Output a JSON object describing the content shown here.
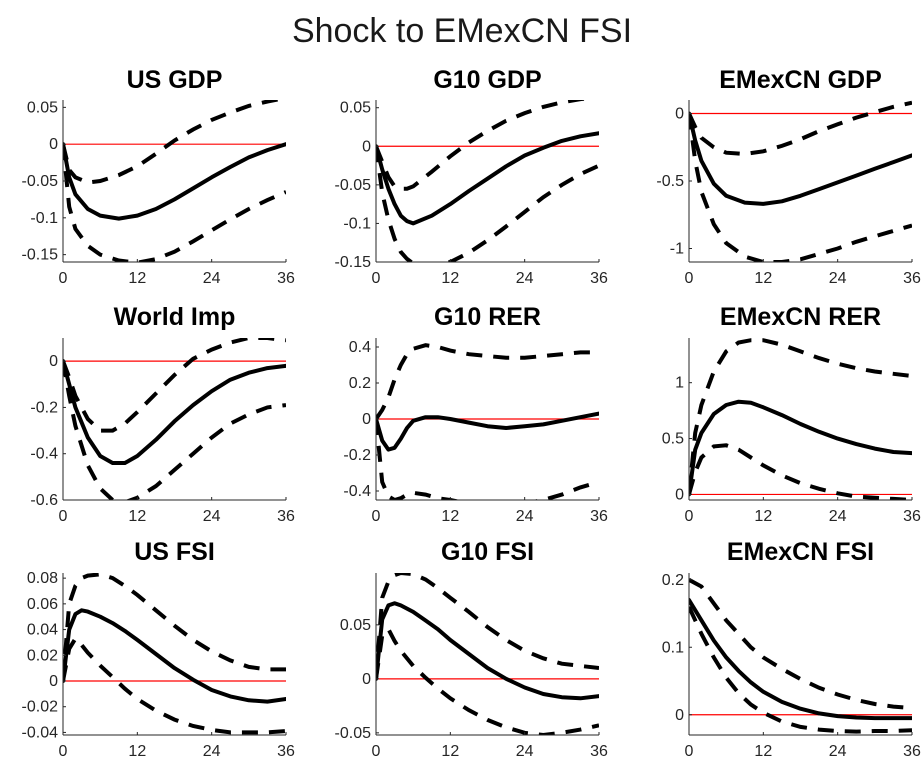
{
  "figure": {
    "title": "Shock to EMexCN FSI"
  },
  "chart_data": [
    {
      "type": "line",
      "title": "US GDP",
      "xlim": [
        0,
        36
      ],
      "ylim": [
        -0.16,
        0.06
      ],
      "xticks": [
        0,
        12,
        24,
        36
      ],
      "yticks": [
        -0.15,
        -0.1,
        -0.05,
        0,
        0.05
      ],
      "ytick_labels": [
        "-0.15",
        "-0.1",
        "-0.05",
        "0",
        "0.05"
      ],
      "x": [
        0,
        1,
        2,
        4,
        6,
        9,
        12,
        15,
        18,
        21,
        24,
        27,
        30,
        33,
        36
      ],
      "irf": [
        0,
        -0.045,
        -0.068,
        -0.088,
        -0.097,
        -0.101,
        -0.097,
        -0.088,
        -0.075,
        -0.06,
        -0.045,
        -0.031,
        -0.018,
        -0.008,
        0
      ],
      "lower": [
        0,
        -0.085,
        -0.115,
        -0.138,
        -0.15,
        -0.158,
        -0.161,
        -0.156,
        -0.146,
        -0.132,
        -0.117,
        -0.102,
        -0.088,
        -0.076,
        -0.065
      ],
      "upper": [
        0,
        -0.035,
        -0.045,
        -0.052,
        -0.05,
        -0.042,
        -0.03,
        -0.013,
        0.005,
        0.02,
        0.033,
        0.043,
        0.052,
        0.058,
        0.063
      ]
    },
    {
      "type": "line",
      "title": "G10 GDP",
      "xlim": [
        0,
        36
      ],
      "ylim": [
        -0.15,
        0.06
      ],
      "xticks": [
        0,
        12,
        24,
        36
      ],
      "yticks": [
        -0.15,
        -0.1,
        -0.05,
        0,
        0.05
      ],
      "ytick_labels": [
        "-0.15",
        "-0.1",
        "-0.05",
        "0",
        "0.05"
      ],
      "x": [
        0,
        1,
        2,
        3,
        4,
        5,
        6,
        9,
        12,
        15,
        18,
        21,
        24,
        27,
        30,
        33,
        36
      ],
      "irf": [
        0,
        -0.03,
        -0.055,
        -0.075,
        -0.09,
        -0.097,
        -0.1,
        -0.09,
        -0.075,
        -0.058,
        -0.042,
        -0.026,
        -0.012,
        -0.002,
        0.007,
        0.013,
        0.017
      ],
      "lower": [
        0,
        -0.06,
        -0.095,
        -0.12,
        -0.137,
        -0.146,
        -0.152,
        -0.155,
        -0.15,
        -0.138,
        -0.122,
        -0.104,
        -0.085,
        -0.066,
        -0.05,
        -0.036,
        -0.025
      ],
      "upper": [
        0,
        -0.02,
        -0.04,
        -0.052,
        -0.055,
        -0.055,
        -0.052,
        -0.033,
        -0.013,
        0.005,
        0.02,
        0.033,
        0.043,
        0.051,
        0.057,
        0.061,
        0.064
      ]
    },
    {
      "type": "line",
      "title": "EMexCN GDP",
      "xlim": [
        0,
        36
      ],
      "ylim": [
        -1.1,
        0.1
      ],
      "xticks": [
        0,
        12,
        24,
        36
      ],
      "yticks": [
        -1,
        -0.5,
        0
      ],
      "ytick_labels": [
        "-1",
        "-0.5",
        "0"
      ],
      "x": [
        0,
        1,
        2,
        4,
        6,
        9,
        12,
        15,
        18,
        21,
        24,
        27,
        30,
        33,
        36
      ],
      "irf": [
        0,
        -0.2,
        -0.35,
        -0.52,
        -0.61,
        -0.66,
        -0.67,
        -0.65,
        -0.61,
        -0.56,
        -0.51,
        -0.46,
        -0.41,
        -0.36,
        -0.31
      ],
      "lower": [
        0,
        -0.35,
        -0.58,
        -0.82,
        -0.96,
        -1.06,
        -1.1,
        -1.1,
        -1.08,
        -1.04,
        -1.0,
        -0.95,
        -0.91,
        -0.87,
        -0.83
      ],
      "upper": [
        0,
        -0.1,
        -0.18,
        -0.25,
        -0.29,
        -0.3,
        -0.28,
        -0.24,
        -0.19,
        -0.13,
        -0.08,
        -0.03,
        0.01,
        0.05,
        0.08
      ]
    },
    {
      "type": "line",
      "title": "World Imp",
      "xlim": [
        0,
        36
      ],
      "ylim": [
        -0.6,
        0.1
      ],
      "xticks": [
        0,
        12,
        24,
        36
      ],
      "yticks": [
        -0.6,
        -0.4,
        -0.2,
        0
      ],
      "ytick_labels": [
        "-0.6",
        "-0.4",
        "-0.2",
        "0"
      ],
      "x": [
        0,
        1,
        2,
        4,
        6,
        8,
        10,
        12,
        15,
        18,
        21,
        24,
        27,
        30,
        33,
        36
      ],
      "irf": [
        0,
        -0.1,
        -0.2,
        -0.33,
        -0.41,
        -0.44,
        -0.44,
        -0.41,
        -0.34,
        -0.26,
        -0.19,
        -0.13,
        -0.08,
        -0.05,
        -0.03,
        -0.02
      ],
      "lower": [
        0,
        -0.15,
        -0.28,
        -0.45,
        -0.55,
        -0.6,
        -0.61,
        -0.59,
        -0.54,
        -0.47,
        -0.4,
        -0.33,
        -0.27,
        -0.23,
        -0.2,
        -0.19
      ],
      "upper": [
        0,
        -0.07,
        -0.15,
        -0.25,
        -0.3,
        -0.3,
        -0.27,
        -0.22,
        -0.14,
        -0.06,
        0.01,
        0.05,
        0.08,
        0.1,
        0.1,
        0.09
      ]
    },
    {
      "type": "line",
      "title": "G10 RER",
      "xlim": [
        0,
        36
      ],
      "ylim": [
        -0.45,
        0.45
      ],
      "xticks": [
        0,
        12,
        24,
        36
      ],
      "yticks": [
        -0.4,
        -0.2,
        0,
        0.2,
        0.4
      ],
      "ytick_labels": [
        "-0.4",
        "-0.2",
        "0",
        "0.2",
        "0.4"
      ],
      "x": [
        0,
        1,
        2,
        3,
        4,
        5,
        6,
        8,
        10,
        12,
        15,
        18,
        21,
        24,
        27,
        30,
        33,
        36
      ],
      "irf": [
        0,
        -0.12,
        -0.17,
        -0.16,
        -0.11,
        -0.05,
        -0.01,
        0.01,
        0.01,
        0.0,
        -0.02,
        -0.04,
        -0.05,
        -0.04,
        -0.03,
        -0.01,
        0.01,
        0.03
      ],
      "lower": [
        0,
        -0.35,
        -0.43,
        -0.45,
        -0.44,
        -0.42,
        -0.41,
        -0.42,
        -0.44,
        -0.45,
        -0.47,
        -0.48,
        -0.48,
        -0.47,
        -0.45,
        -0.42,
        -0.38,
        -0.35
      ],
      "upper": [
        0,
        0.05,
        0.12,
        0.22,
        0.3,
        0.36,
        0.39,
        0.41,
        0.4,
        0.38,
        0.36,
        0.35,
        0.34,
        0.34,
        0.35,
        0.36,
        0.37,
        0.37
      ]
    },
    {
      "type": "line",
      "title": "EMexCN RER",
      "xlim": [
        0,
        36
      ],
      "ylim": [
        -0.05,
        1.4
      ],
      "xticks": [
        0,
        12,
        24,
        36
      ],
      "yticks": [
        0,
        0.5,
        1
      ],
      "ytick_labels": [
        "0",
        "0.5",
        "1"
      ],
      "x": [
        0,
        1,
        2,
        4,
        6,
        8,
        10,
        12,
        15,
        18,
        21,
        24,
        27,
        30,
        33,
        36
      ],
      "irf": [
        0,
        0.4,
        0.55,
        0.72,
        0.8,
        0.83,
        0.82,
        0.78,
        0.71,
        0.63,
        0.56,
        0.5,
        0.45,
        0.41,
        0.38,
        0.37
      ],
      "lower": [
        0,
        0.2,
        0.33,
        0.43,
        0.44,
        0.4,
        0.33,
        0.26,
        0.17,
        0.1,
        0.05,
        0.01,
        -0.02,
        -0.03,
        -0.04,
        -0.05
      ],
      "upper": [
        0,
        0.55,
        0.8,
        1.1,
        1.28,
        1.36,
        1.38,
        1.38,
        1.34,
        1.28,
        1.22,
        1.17,
        1.13,
        1.1,
        1.08,
        1.06
      ]
    },
    {
      "type": "line",
      "title": "US FSI",
      "xlim": [
        0,
        36
      ],
      "ylim": [
        -0.042,
        0.084
      ],
      "xticks": [
        0,
        12,
        24,
        36
      ],
      "yticks": [
        -0.04,
        -0.02,
        0,
        0.02,
        0.04,
        0.06,
        0.08
      ],
      "ytick_labels": [
        "-0.04",
        "-0.02",
        "0",
        "0.02",
        "0.04",
        "0.06",
        "0.08"
      ],
      "x": [
        0,
        1,
        2,
        3,
        4,
        6,
        8,
        10,
        12,
        15,
        18,
        21,
        24,
        27,
        30,
        33,
        36
      ],
      "irf": [
        0,
        0.04,
        0.052,
        0.055,
        0.054,
        0.05,
        0.045,
        0.039,
        0.032,
        0.021,
        0.01,
        0.001,
        -0.007,
        -0.012,
        -0.015,
        -0.016,
        -0.014
      ],
      "lower": [
        0,
        0.025,
        0.033,
        0.028,
        0.022,
        0.012,
        0.003,
        -0.006,
        -0.014,
        -0.023,
        -0.03,
        -0.035,
        -0.038,
        -0.04,
        -0.04,
        -0.04,
        -0.039
      ],
      "upper": [
        0,
        0.06,
        0.074,
        0.08,
        0.082,
        0.083,
        0.08,
        0.074,
        0.067,
        0.055,
        0.043,
        0.032,
        0.023,
        0.016,
        0.011,
        0.009,
        0.009
      ]
    },
    {
      "type": "line",
      "title": "G10 FSI",
      "xlim": [
        0,
        36
      ],
      "ylim": [
        -0.052,
        0.098
      ],
      "xticks": [
        0,
        12,
        24,
        36
      ],
      "yticks": [
        -0.05,
        0,
        0.05
      ],
      "ytick_labels": [
        "-0.05",
        "0",
        "0.05"
      ],
      "x": [
        0,
        1,
        2,
        3,
        4,
        6,
        8,
        10,
        12,
        15,
        18,
        21,
        24,
        27,
        30,
        33,
        36
      ],
      "irf": [
        0,
        0.055,
        0.068,
        0.07,
        0.068,
        0.062,
        0.054,
        0.046,
        0.036,
        0.023,
        0.01,
        0.0,
        -0.008,
        -0.014,
        -0.017,
        -0.018,
        -0.016
      ],
      "lower": [
        0,
        0.04,
        0.046,
        0.035,
        0.026,
        0.012,
        0.001,
        -0.009,
        -0.018,
        -0.029,
        -0.038,
        -0.045,
        -0.05,
        -0.052,
        -0.05,
        -0.047,
        -0.043
      ],
      "upper": [
        0,
        0.075,
        0.09,
        0.096,
        0.098,
        0.097,
        0.092,
        0.084,
        0.075,
        0.062,
        0.048,
        0.036,
        0.026,
        0.019,
        0.014,
        0.012,
        0.01
      ]
    },
    {
      "type": "line",
      "title": "EMexCN FSI",
      "xlim": [
        0,
        36
      ],
      "ylim": [
        -0.03,
        0.21
      ],
      "xticks": [
        0,
        12,
        24,
        36
      ],
      "yticks": [
        0,
        0.1,
        0.2
      ],
      "ytick_labels": [
        "0",
        "0.1",
        "0.2"
      ],
      "x": [
        0,
        2,
        4,
        6,
        8,
        10,
        12,
        15,
        18,
        21,
        24,
        27,
        30,
        33,
        36
      ],
      "irf": [
        0.17,
        0.14,
        0.11,
        0.085,
        0.065,
        0.048,
        0.034,
        0.019,
        0.009,
        0.002,
        -0.002,
        -0.004,
        -0.005,
        -0.005,
        -0.005
      ],
      "lower": [
        0.16,
        0.12,
        0.085,
        0.055,
        0.032,
        0.015,
        0.003,
        -0.01,
        -0.018,
        -0.022,
        -0.024,
        -0.025,
        -0.024,
        -0.024,
        -0.023
      ],
      "upper": [
        0.2,
        0.19,
        0.165,
        0.14,
        0.12,
        0.1,
        0.085,
        0.068,
        0.053,
        0.04,
        0.03,
        0.022,
        0.016,
        0.012,
        0.01
      ]
    }
  ]
}
